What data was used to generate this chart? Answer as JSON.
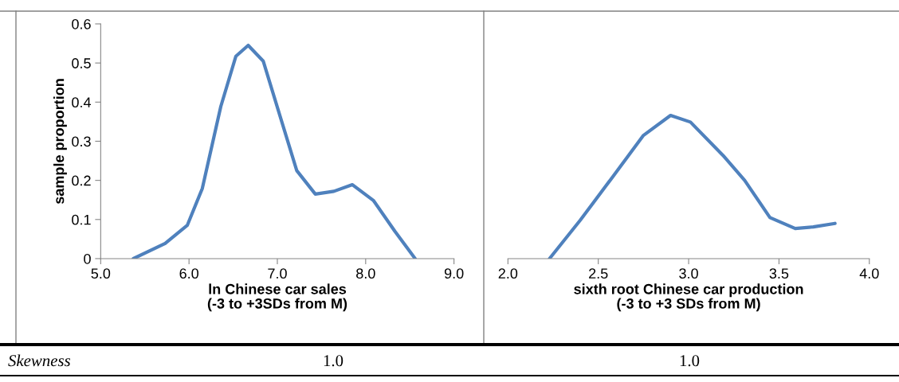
{
  "chart_data": [
    {
      "type": "line",
      "xlabel": "ln Chinese car sales\n(-3 to +3SDs from M)",
      "ylabel": "sample proportion",
      "series": [
        {
          "color": "#4f81bd",
          "x": [
            5.37,
            5.73,
            5.98,
            6.15,
            6.36,
            6.53,
            6.67,
            6.84,
            7.05,
            7.22,
            7.43,
            7.64,
            7.85,
            8.09,
            8.33,
            8.56
          ],
          "values": [
            0,
            0.039,
            0.085,
            0.179,
            0.389,
            0.517,
            0.545,
            0.505,
            0.35,
            0.225,
            0.165,
            0.172,
            0.189,
            0.148,
            0.07,
            0
          ]
        }
      ],
      "xlim": [
        5.0,
        9.0
      ],
      "xticks": [
        {
          "value": 5.0,
          "label": "5.0"
        },
        {
          "value": 6.0,
          "label": "6.0"
        },
        {
          "value": 7.0,
          "label": "7.0"
        },
        {
          "value": 8.0,
          "label": "8.0"
        },
        {
          "value": 9.0,
          "label": "9.0"
        }
      ],
      "ylim": [
        0,
        0.6
      ],
      "yticks": [
        0,
        0.1,
        0.2,
        0.3,
        0.4,
        0.5,
        0.6
      ],
      "grid": false,
      "annotations": [
        "Skewness",
        "1.0"
      ]
    },
    {
      "type": "line",
      "xlabel": "sixth root Chinese car production\n(-3 to +3 SDs from M)",
      "series": [
        {
          "color": "#4f81bd",
          "x": [
            2.23,
            2.4,
            2.57,
            2.75,
            2.9,
            3.01,
            3.19,
            3.31,
            3.45,
            3.59,
            3.69,
            3.81
          ],
          "values": [
            0,
            0.098,
            0.203,
            0.315,
            0.366,
            0.349,
            0.264,
            0.2,
            0.105,
            0.077,
            0.081,
            0.09
          ]
        }
      ],
      "xlim": [
        2.0,
        4.0
      ],
      "xticks": [
        {
          "value": 2.0,
          "label": "2.0"
        },
        {
          "value": 2.5,
          "label": "2.5"
        },
        {
          "value": 3.0,
          "label": "3.0"
        },
        {
          "value": 3.5,
          "label": "3.5"
        },
        {
          "value": 4.0,
          "label": "4.0"
        }
      ],
      "ylim": [
        0,
        0.6
      ],
      "tick_labels": "x",
      "grid": false,
      "annotations": [
        "1.0"
      ]
    }
  ]
}
